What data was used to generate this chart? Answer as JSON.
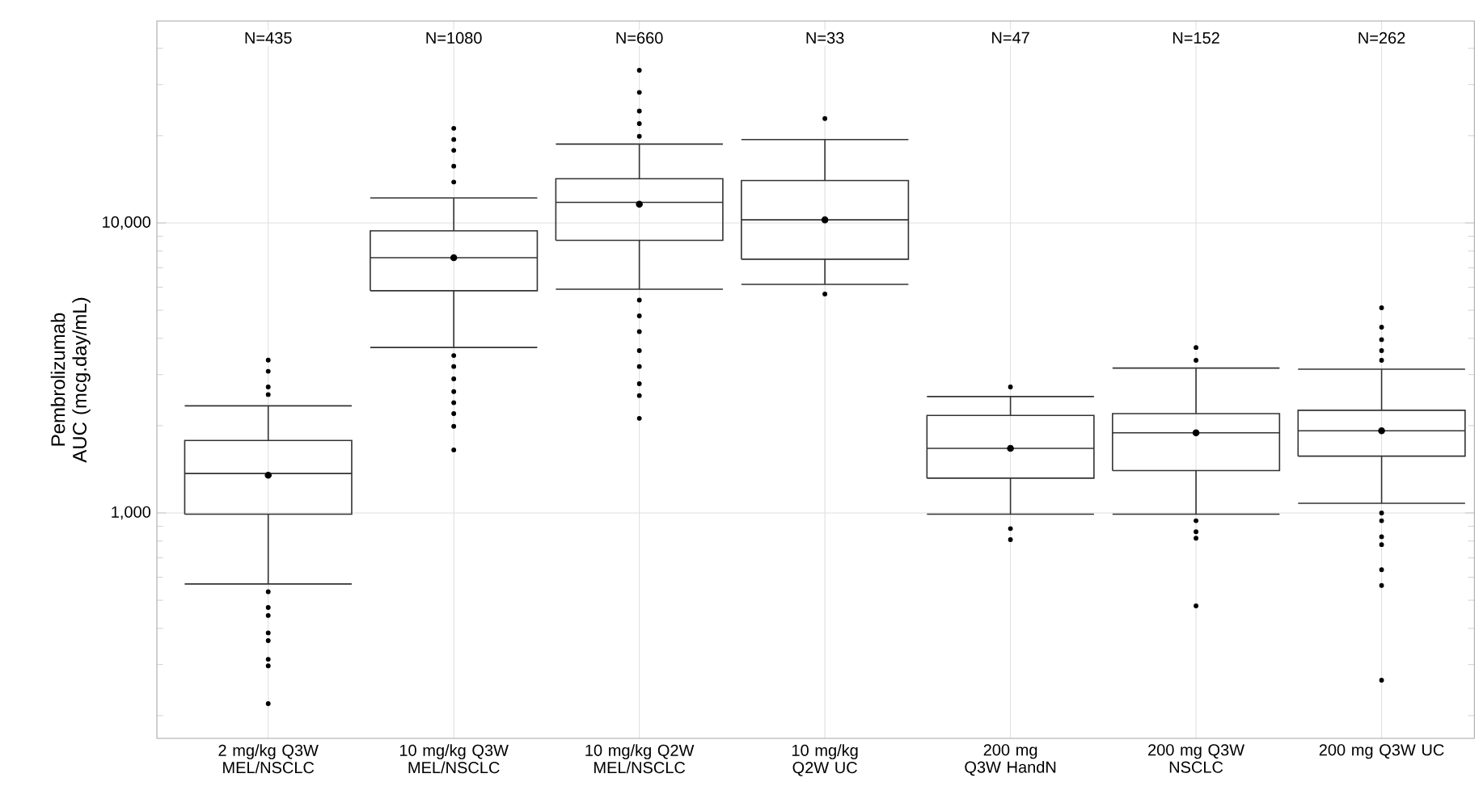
{
  "chart_data": {
    "type": "box",
    "ylabel": "Pembrolizumab AUC (mcg.day/mL)",
    "log": "y",
    "grid": true,
    "color": "#333333",
    "categories": [
      "2 mg/kg Q3W MEL/NSCLC",
      "10 mg/kg Q3W MEL/NSCLC",
      "10 mg/kg Q2W MEL/NSCLC",
      "10 mg/kg Q2W UC",
      "200 mg Q3W HandN",
      "200 mg Q3W NSCLC",
      "200 mg Q3W UC"
    ],
    "annotations": [
      "N=435",
      "N=1080",
      "N=660",
      "N=33",
      "N=47",
      "N=152",
      "N=262"
    ],
    "ylim": [
      167,
      49700
    ],
    "yticks": [
      {
        "value": 200,
        "label": null
      },
      {
        "value": 300,
        "label": null
      },
      {
        "value": 400,
        "label": null
      },
      {
        "value": 500,
        "label": null
      },
      {
        "value": 600,
        "label": null
      },
      {
        "value": 700,
        "label": null
      },
      {
        "value": 800,
        "label": null
      },
      {
        "value": 900,
        "label": null
      },
      {
        "value": 1000,
        "label": "1,000"
      },
      {
        "value": 2000,
        "label": null
      },
      {
        "value": 3000,
        "label": null
      },
      {
        "value": 4000,
        "label": null
      },
      {
        "value": 5000,
        "label": null
      },
      {
        "value": 6000,
        "label": null
      },
      {
        "value": 7000,
        "label": null
      },
      {
        "value": 8000,
        "label": null
      },
      {
        "value": 9000,
        "label": null
      },
      {
        "value": 10000,
        "label": "10,000"
      },
      {
        "value": 20000,
        "label": null
      },
      {
        "value": 30000,
        "label": null
      },
      {
        "value": 40000,
        "label": null
      }
    ],
    "boxes": [
      {
        "low": 569,
        "q1": 990,
        "median": 1368,
        "q3": 1778,
        "high": 2340,
        "mean": 1350,
        "outliers": [
          3365,
          3080,
          2720,
          2560,
          535,
          472,
          443,
          386,
          363,
          313,
          297,
          220
        ]
      },
      {
        "low": 3720,
        "q1": 5840,
        "median": 7590,
        "q3": 9390,
        "high": 12200,
        "mean": 7590,
        "outliers": [
          21200,
          19400,
          17800,
          15700,
          13840,
          3490,
          3200,
          2900,
          2620,
          2400,
          2200,
          1990,
          1650
        ]
      },
      {
        "low": 5910,
        "q1": 8710,
        "median": 11770,
        "q3": 14200,
        "high": 18700,
        "mean": 11600,
        "outliers": [
          33600,
          28200,
          24300,
          22000,
          19900,
          5420,
          4780,
          4220,
          3630,
          3200,
          2790,
          2540,
          2120
        ]
      },
      {
        "low": 6140,
        "q1": 7500,
        "median": 10250,
        "q3": 14000,
        "high": 19400,
        "mean": 10250,
        "outliers": [
          22900,
          5690
        ]
      },
      {
        "low": 990,
        "q1": 1318,
        "median": 1670,
        "q3": 2170,
        "high": 2520,
        "mean": 1670,
        "outliers": [
          2720,
          883,
          809
        ]
      },
      {
        "low": 990,
        "q1": 1400,
        "median": 1890,
        "q3": 2200,
        "high": 3160,
        "mean": 1890,
        "outliers": [
          3720,
          3360,
          940,
          861,
          818,
          478
        ]
      },
      {
        "low": 1080,
        "q1": 1570,
        "median": 1920,
        "q3": 2260,
        "high": 3130,
        "mean": 1920,
        "outliers": [
          5100,
          4370,
          3960,
          3630,
          3360,
          1000,
          940,
          828,
          778,
          637,
          562,
          265
        ]
      }
    ]
  }
}
